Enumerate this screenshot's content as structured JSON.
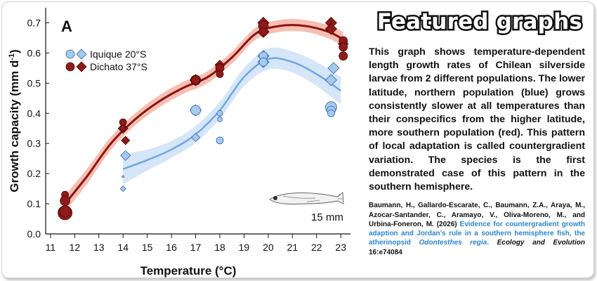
{
  "chart_data": {
    "type": "scatter",
    "panel_label": "A",
    "xlabel": "Temperature (°C)",
    "ylabel": "Growth capacity (mm d",
    "ylabel_superscript": "-1",
    "ylabel_close": ")",
    "xlim": [
      10.8,
      23.4
    ],
    "ylim": [
      0.0,
      0.75
    ],
    "xticks": [
      11,
      12,
      13,
      14,
      15,
      16,
      17,
      18,
      19,
      20,
      21,
      22,
      23
    ],
    "yticks": [
      0.0,
      0.1,
      0.2,
      0.3,
      0.4,
      0.5,
      0.6,
      0.7
    ],
    "grid": false,
    "legend_position": "top-left",
    "scale_bar_label": "15 mm",
    "colors": {
      "north_point": "#a6c9ec",
      "north_edge": "#2f66b0",
      "north_line": "#6fa6e2",
      "north_band": "#c7ddf6",
      "south_point": "#8f1a17",
      "south_edge": "#4a0909",
      "south_line": "#8b1212",
      "south_band": "#f6b4a4"
    },
    "series": [
      {
        "name": "Iquique 20°S",
        "role": "north",
        "circles": [
          [
            17.0,
            0.41,
            7
          ],
          [
            18.0,
            0.4,
            4
          ],
          [
            18.0,
            0.38,
            3.5
          ],
          [
            18.0,
            0.31,
            5
          ],
          [
            14.0,
            0.19,
            1.5
          ],
          [
            19.8,
            0.59,
            6
          ],
          [
            19.8,
            0.57,
            6
          ],
          [
            22.6,
            0.42,
            8
          ],
          [
            22.6,
            0.41,
            6
          ],
          [
            22.6,
            0.4,
            5
          ]
        ],
        "diamonds": [
          [
            14.1,
            0.26,
            7
          ],
          [
            14.0,
            0.15,
            4
          ],
          [
            17.0,
            0.41,
            8
          ],
          [
            17.0,
            0.32,
            6
          ],
          [
            19.8,
            0.59,
            8
          ],
          [
            19.8,
            0.57,
            8
          ],
          [
            22.7,
            0.55,
            8
          ],
          [
            22.6,
            0.51,
            8
          ]
        ],
        "fit_x": [
          14.0,
          15.0,
          16.0,
          17.0,
          18.0,
          19.0,
          20.0,
          21.0,
          22.0,
          23.0
        ],
        "fit_y": [
          0.215,
          0.245,
          0.28,
          0.33,
          0.41,
          0.52,
          0.58,
          0.57,
          0.53,
          0.475
        ],
        "band_halfwidth": [
          0.05,
          0.035,
          0.028,
          0.028,
          0.028,
          0.03,
          0.035,
          0.035,
          0.04,
          0.045
        ]
      },
      {
        "name": "Dichato 37°S",
        "role": "south",
        "circles": [
          [
            11.6,
            0.13,
            5
          ],
          [
            11.6,
            0.11,
            7
          ],
          [
            11.6,
            0.07,
            10
          ],
          [
            11.6,
            0.075,
            8
          ],
          [
            14.0,
            0.37,
            5
          ],
          [
            14.0,
            0.35,
            4
          ],
          [
            17.0,
            0.51,
            7
          ],
          [
            17.0,
            0.51,
            6
          ],
          [
            18.0,
            0.55,
            6
          ],
          [
            18.0,
            0.53,
            5
          ],
          [
            19.8,
            0.69,
            7
          ],
          [
            19.8,
            0.67,
            6
          ],
          [
            23.1,
            0.64,
            6
          ],
          [
            23.1,
            0.62,
            6
          ],
          [
            23.1,
            0.59,
            6
          ]
        ],
        "diamonds": [
          [
            14.0,
            0.35,
            7
          ],
          [
            14.1,
            0.31,
            6
          ],
          [
            17.0,
            0.51,
            8
          ],
          [
            18.0,
            0.56,
            7
          ],
          [
            19.8,
            0.7,
            8
          ],
          [
            19.8,
            0.67,
            8
          ],
          [
            22.6,
            0.7,
            8
          ],
          [
            22.6,
            0.68,
            8
          ],
          [
            23.1,
            0.63,
            7
          ]
        ],
        "fit_x": [
          11.6,
          12.5,
          13.5,
          14.5,
          15.5,
          16.5,
          17.5,
          18.5,
          19.5,
          20.5,
          21.5,
          22.5,
          23.1
        ],
        "fit_y": [
          0.1,
          0.19,
          0.3,
          0.38,
          0.44,
          0.485,
          0.52,
          0.585,
          0.665,
          0.69,
          0.69,
          0.67,
          0.645
        ],
        "band_halfwidth": [
          0.028,
          0.025,
          0.022,
          0.02,
          0.02,
          0.02,
          0.02,
          0.02,
          0.02,
          0.02,
          0.02,
          0.022,
          0.025
        ]
      }
    ]
  },
  "featured": {
    "heading": "Featured graphs",
    "description": "This graph shows temperature-dependent length growth rates of Chilean silverside larvae from 2 different populations. The lower latitude, northern population (blue) grows consistently slower at all temperatures than their conspecifics from the higher latitude, more southern population (red). This pattern of local adaptation is called countergradient variation. The species is the first demonstrated case of this pattern in the southern hemisphere.",
    "citation_authors": "Baumann, H., Gallardo-Escarate, C., Baumann, Z.A., Araya, M., Azocar-Santander, C., Aramayo, V., Oliva-Moreno, M., and Urbina-Foneron, M. (2026)",
    "citation_title": "Evidence for countergradient growth adaption and Jordan’s rule in a southern hemisphere fish, the atherinopsid",
    "citation_species": "Odontesthes regia",
    "citation_title_end": ".",
    "citation_journal": "Ecology and Evolution",
    "citation_volume": "16:e74084"
  }
}
